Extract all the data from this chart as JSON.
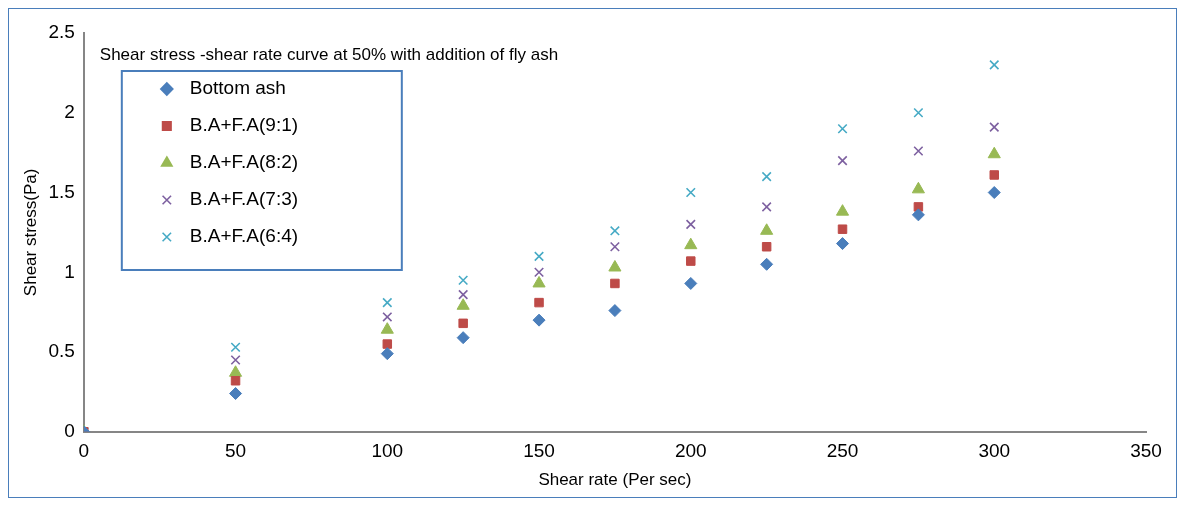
{
  "chart_data": {
    "type": "scatter",
    "title": "Shear stress -shear rate curve at 50% with addition of fly ash",
    "xlabel": "Shear rate (Per sec)",
    "ylabel": "Shear stress(Pa)",
    "x": [
      0,
      50,
      100,
      125,
      150,
      175,
      200,
      225,
      250,
      275,
      300
    ],
    "series": [
      {
        "name": "Bottom ash",
        "color": "#4a7ebb",
        "marker": "diamond",
        "values": [
          0,
          0.24,
          0.49,
          0.59,
          0.7,
          0.76,
          0.93,
          1.05,
          1.18,
          1.36,
          1.5
        ]
      },
      {
        "name": "B.A+F.A(9:1)",
        "color": "#be4b48",
        "marker": "square",
        "values": [
          0,
          0.32,
          0.55,
          0.68,
          0.81,
          0.93,
          1.07,
          1.16,
          1.27,
          1.41,
          1.61
        ]
      },
      {
        "name": "B.A+F.A(8:2)",
        "color": "#98b954",
        "marker": "triangle",
        "values": [
          0,
          0.37,
          0.64,
          0.79,
          0.93,
          1.03,
          1.17,
          1.26,
          1.38,
          1.52,
          1.74
        ]
      },
      {
        "name": "B.A+F.A(7:3)",
        "color": "#7d60a0",
        "marker": "cross",
        "values": [
          0,
          0.45,
          0.72,
          0.86,
          1.0,
          1.16,
          1.3,
          1.41,
          1.7,
          1.76,
          1.91
        ]
      },
      {
        "name": "B.A+F.A(6:4)",
        "color": "#46aac5",
        "marker": "cross",
        "values": [
          0,
          0.53,
          0.81,
          0.95,
          1.1,
          1.26,
          1.5,
          1.6,
          1.9,
          2.0,
          2.3
        ]
      }
    ],
    "xlim": [
      0,
      350
    ],
    "xticks": [
      0,
      50,
      100,
      150,
      200,
      250,
      300,
      350
    ],
    "ylim": [
      0,
      2.5
    ],
    "yticks": [
      0,
      0.5,
      1,
      1.5,
      2,
      2.5
    ],
    "grid": false,
    "legend": "top left"
  }
}
